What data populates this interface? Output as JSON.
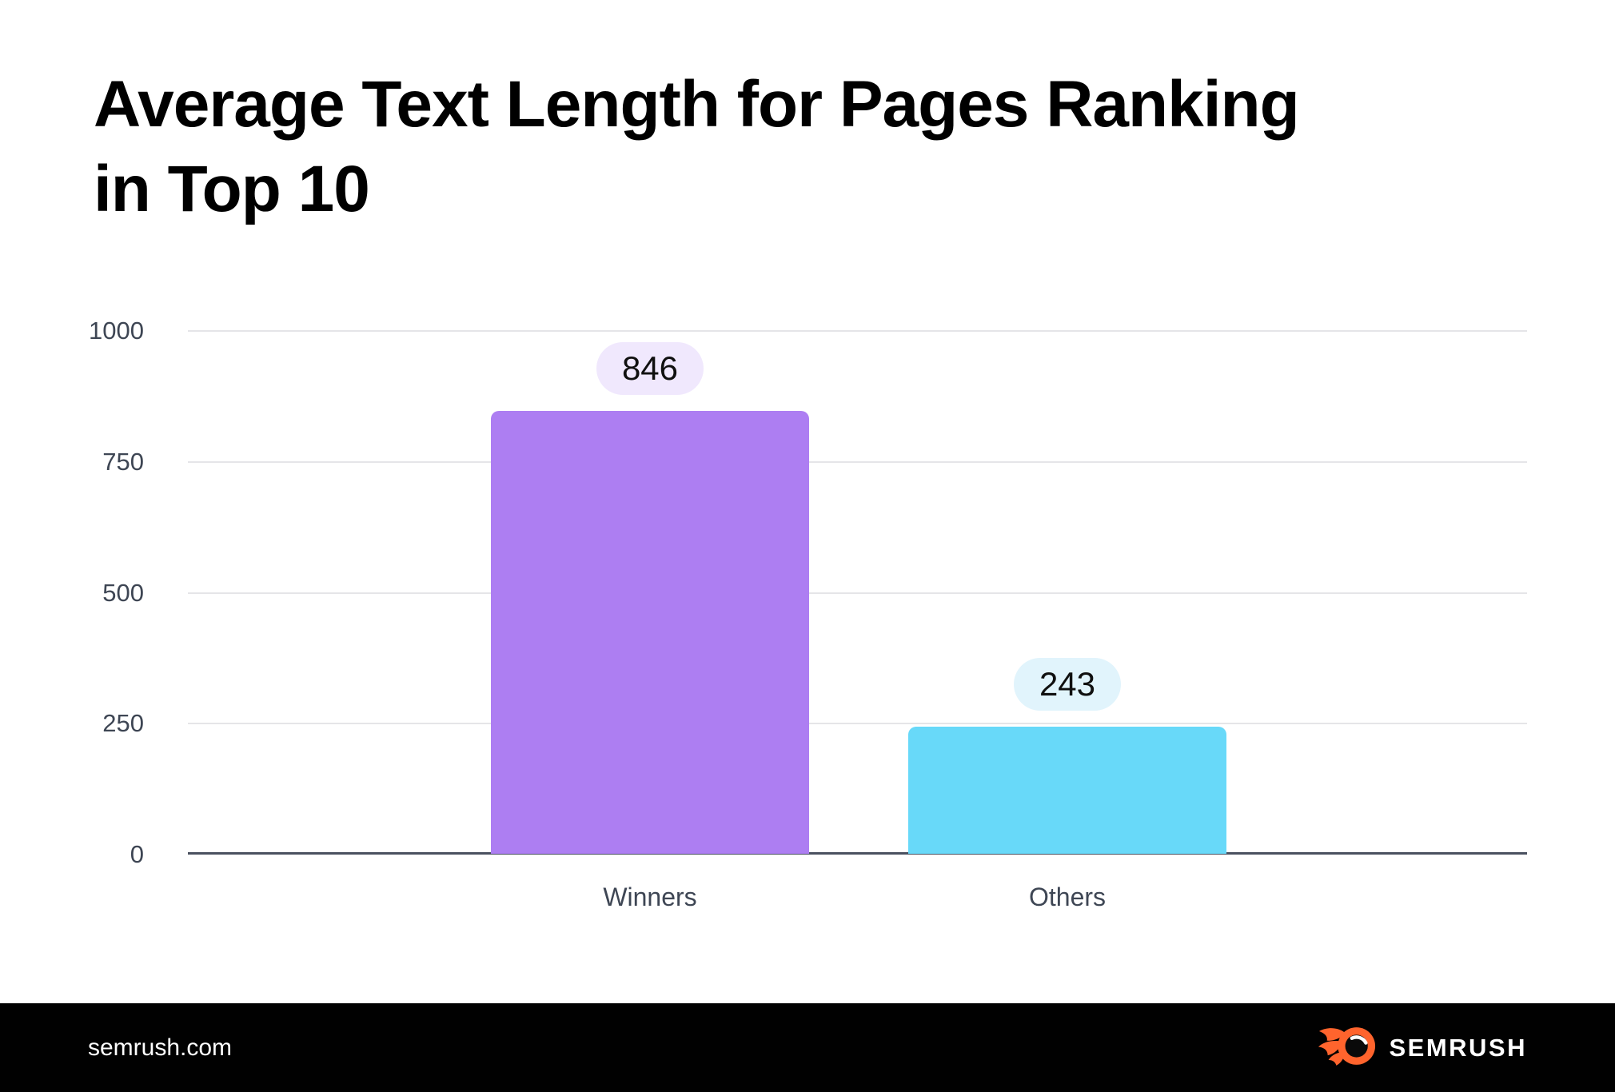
{
  "chart_data": {
    "type": "bar",
    "title": "Average Text Length for Pages Ranking in Top 10",
    "categories": [
      "Winners",
      "Others"
    ],
    "values": [
      846,
      243
    ],
    "xlabel": "",
    "ylabel": "",
    "ylim": [
      0,
      1000
    ],
    "yticks": [
      0,
      250,
      500,
      750,
      1000
    ],
    "grid": true,
    "legend": "none",
    "bar_colors": [
      "#ad7ef2",
      "#68d9f9"
    ],
    "value_label_bg_colors": [
      "#f0e8fd",
      "#e1f4fc"
    ],
    "value_label_text_color": "#101010",
    "axis_text_color": "#3e4654",
    "gridline_color": "#e5e5e8",
    "axis_line_color": "#4a5160"
  },
  "ui": {
    "title_line1": "Average Text Length for Pages Ranking",
    "title_line2": "in Top 10",
    "footer": {
      "site": "semrush.com",
      "brand": "SEMRUSH",
      "background": "#010101",
      "logo_orange": "#ff642d"
    }
  }
}
